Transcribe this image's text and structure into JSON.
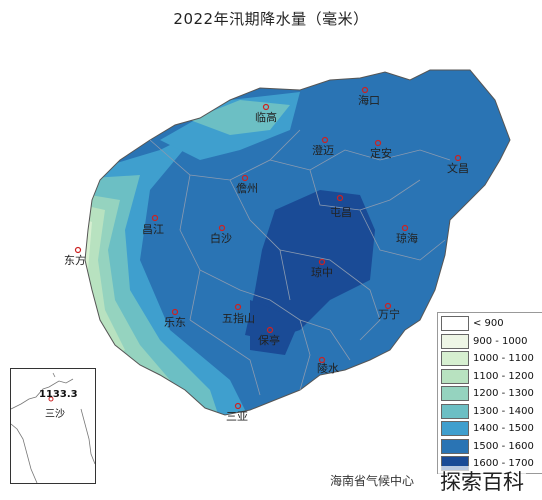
{
  "title": "2022年汛期降水量（毫米）",
  "cities": [
    {
      "name": "海口"
    },
    {
      "name": "临高"
    },
    {
      "name": "澄迈"
    },
    {
      "name": "定安"
    },
    {
      "name": "文昌"
    },
    {
      "name": "儋州"
    },
    {
      "name": "屯昌"
    },
    {
      "name": "昌江"
    },
    {
      "name": "白沙"
    },
    {
      "name": "琼海"
    },
    {
      "name": "东方"
    },
    {
      "name": "琼中"
    },
    {
      "name": "乐东"
    },
    {
      "name": "五指山"
    },
    {
      "name": "万宁"
    },
    {
      "name": "保亭"
    },
    {
      "name": "陵水"
    },
    {
      "name": "三亚"
    }
  ],
  "legend": [
    {
      "label": "< 900",
      "color": "#ffffff"
    },
    {
      "label": "900 - 1000",
      "color": "#eef6e6"
    },
    {
      "label": "1000 - 1100",
      "color": "#d6efd0"
    },
    {
      "label": "1100 - 1200",
      "color": "#b8e2c0"
    },
    {
      "label": "1200 - 1300",
      "color": "#95d3bf"
    },
    {
      "label": "1300 - 1400",
      "color": "#6cbfc4"
    },
    {
      "label": "1400 - 1500",
      "color": "#3f9fce"
    },
    {
      "label": "1500 - 1600",
      "color": "#2a74b4"
    },
    {
      "label": "1600 - 1700",
      "color": "#1a4b96"
    }
  ],
  "inset": {
    "value": "1133.3",
    "label": "三沙"
  },
  "source": "海南省气候中心",
  "watermark": "探索百科"
}
